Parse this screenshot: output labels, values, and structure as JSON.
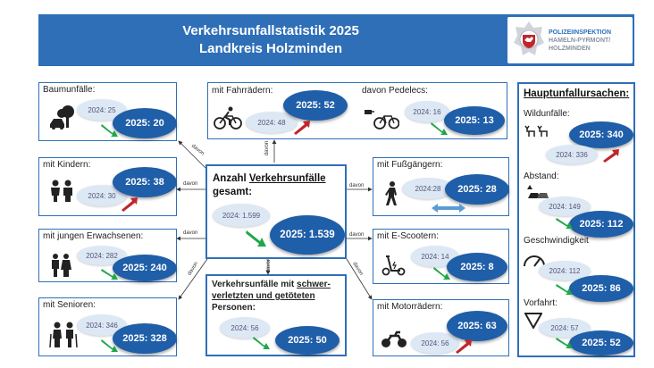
{
  "header": {
    "title_line1": "Verkehrsunfallstatistik 2025",
    "title_line2": "Landkreis Holzminden",
    "logo_line1": "POLIZEIINSPEKTION",
    "logo_line2": "HAMELN-PYRMONT/",
    "logo_line3": "HOLZMINDEN"
  },
  "davon": "davon",
  "center": {
    "label_a": "Anzahl ",
    "label_b": "Verkehrsunfälle",
    "label_c": "gesamt:",
    "old": "2024: 1.599",
    "new": "2025: 1.539"
  },
  "severe": {
    "label_a": "Verkehrsunfälle mit ",
    "label_b": "schwer-",
    "label_c": "verletzten und getöteten",
    "label_d": "Personen:",
    "old": "2024: 56",
    "new": "2025: 50"
  },
  "boxes": {
    "baum": {
      "label": "Baumunfälle:",
      "old": "2024: 25",
      "new": "2025: 20"
    },
    "kinder": {
      "label": "mit Kindern:",
      "old": "2024: 30",
      "new": "2025: 38"
    },
    "jung": {
      "label": "mit jungen Erwachsenen:",
      "old": "2024: 282",
      "new": "2025: 240"
    },
    "senioren": {
      "label": "mit Senioren:",
      "old": "2024: 346",
      "new": "2025: 328"
    },
    "fahrrad": {
      "label": "mit Fahrrädern:",
      "old": "2024: 48",
      "new": "2025: 52"
    },
    "pedelec": {
      "label": "davon Pedelecs:",
      "old": "2024: 16",
      "new": "2025: 13"
    },
    "fuss": {
      "label": "mit Fußgängern:",
      "old": "2024:28",
      "new": "2025: 28"
    },
    "escooter": {
      "label": "mit E-Scootern:",
      "old": "2024: 14",
      "new": "2025: 8"
    },
    "motorrad": {
      "label": "mit Motorrädern:",
      "old": "2024: 56",
      "new": "2025: 63"
    }
  },
  "causes": {
    "title": "Hauptunfallursachen:",
    "wild": {
      "label": "Wildunfälle:",
      "old": "2024: 336",
      "new": "2025: 340"
    },
    "abstand": {
      "label": "Abstand:",
      "old": "2024: 149",
      "new": "2025: 112"
    },
    "geschw": {
      "label": "Geschwindigkeit",
      "old": "2024: 112",
      "new": "2025: 86"
    },
    "vorfahrt": {
      "label": "Vorfahrt:",
      "old": "2024: 57",
      "new": "2025: 52"
    }
  },
  "colors": {
    "blue": "#1f5ea8",
    "header": "#2f6fb8",
    "green": "#1fa84a",
    "red": "#c0262b",
    "light": "#dde8f5"
  }
}
